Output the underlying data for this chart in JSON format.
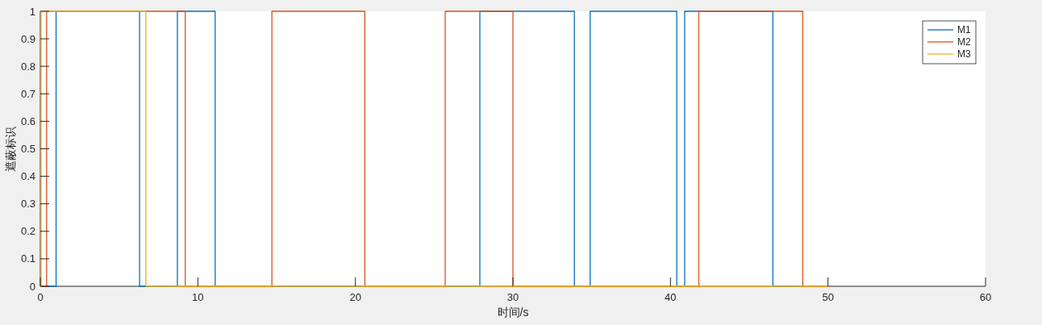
{
  "chart_data": {
    "type": "step",
    "xlabel": "时间/s",
    "ylabel": "遮蔽标识",
    "xlim": [
      0,
      60
    ],
    "xticks": [
      0,
      10,
      20,
      30,
      40,
      50,
      60
    ],
    "ylim": [
      0,
      1
    ],
    "yticks": [
      0,
      0.1,
      0.2,
      0.3,
      0.4,
      0.5,
      0.6,
      0.7,
      0.8,
      0.9,
      1
    ],
    "legend": "top right",
    "grid": false,
    "series": [
      {
        "name": "M1",
        "color": "#0072bd",
        "x": [
          0,
          1.0,
          6.3,
          8.7,
          11.1,
          27.9,
          33.9,
          34.9,
          40.4,
          40.9,
          46.5,
          50
        ],
        "values": [
          0,
          1,
          0,
          1,
          0,
          1,
          0,
          1,
          0,
          1,
          0,
          0
        ]
      },
      {
        "name": "M2",
        "color": "#d95319",
        "x": [
          0,
          0.4,
          9.2,
          14.7,
          20.6,
          25.7,
          30.0,
          41.8,
          48.4,
          50
        ],
        "values": [
          0,
          1,
          0,
          1,
          0,
          1,
          0,
          1,
          0,
          0
        ]
      },
      {
        "name": "M3",
        "color": "#edb120",
        "x": [
          0,
          0.05,
          6.7,
          50
        ],
        "values": [
          0,
          1,
          0,
          0
        ]
      }
    ]
  }
}
